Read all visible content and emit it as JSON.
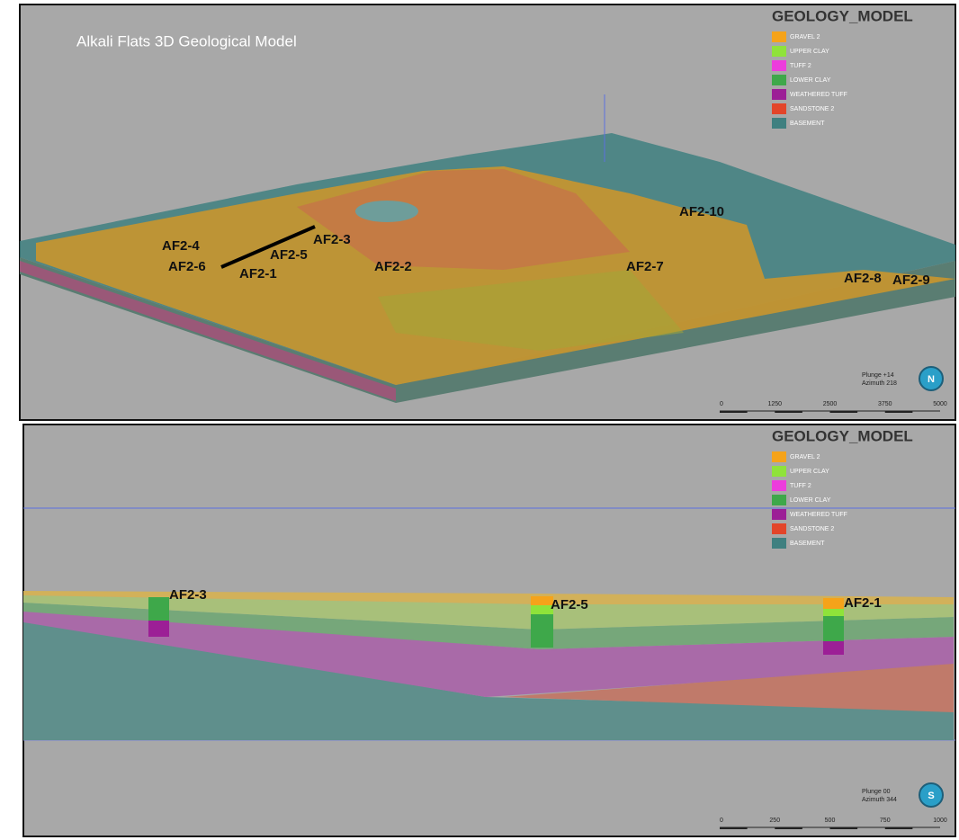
{
  "top_panel": {
    "title": "Alkali Flats 3D Geological Model",
    "legend_title": "GEOLOGY_MODEL",
    "legend": [
      {
        "label": "GRAVEL 2",
        "color": "#f5a31a"
      },
      {
        "label": "UPPER CLAY",
        "color": "#8fe33a"
      },
      {
        "label": "TUFF 2",
        "color": "#ec3cdc"
      },
      {
        "label": "LOWER CLAY",
        "color": "#3ea84a"
      },
      {
        "label": "WEATHERED TUFF",
        "color": "#9c1f96"
      },
      {
        "label": "SANDSTONE 2",
        "color": "#e2452a"
      },
      {
        "label": "BASEMENT",
        "color": "#3f8080"
      }
    ],
    "wells": [
      "AF2-4",
      "AF2-6",
      "AF2-1",
      "AF2-5",
      "AF2-3",
      "AF2-2",
      "AF2-10",
      "AF2-7",
      "AF2-8",
      "AF2-9"
    ],
    "plunge": "Plunge +14",
    "azimuth": "Azimuth 218",
    "compass": "N",
    "scale": [
      "0",
      "1250",
      "2500",
      "3750",
      "5000"
    ]
  },
  "bottom_panel": {
    "legend_title": "GEOLOGY_MODEL",
    "legend": [
      {
        "label": "GRAVEL 2",
        "color": "#f5a31a"
      },
      {
        "label": "UPPER CLAY",
        "color": "#8fe33a"
      },
      {
        "label": "TUFF 2",
        "color": "#ec3cdc"
      },
      {
        "label": "LOWER CLAY",
        "color": "#3ea84a"
      },
      {
        "label": "WEATHERED TUFF",
        "color": "#9c1f96"
      },
      {
        "label": "SANDSTONE 2",
        "color": "#e2452a"
      },
      {
        "label": "BASEMENT",
        "color": "#3f8080"
      }
    ],
    "wells": [
      "AF2-3",
      "AF2-5",
      "AF2-1"
    ],
    "plunge": "Plunge 00",
    "azimuth": "Azimuth 344",
    "compass": "S",
    "scale": [
      "0",
      "250",
      "500",
      "750",
      "1000"
    ]
  }
}
